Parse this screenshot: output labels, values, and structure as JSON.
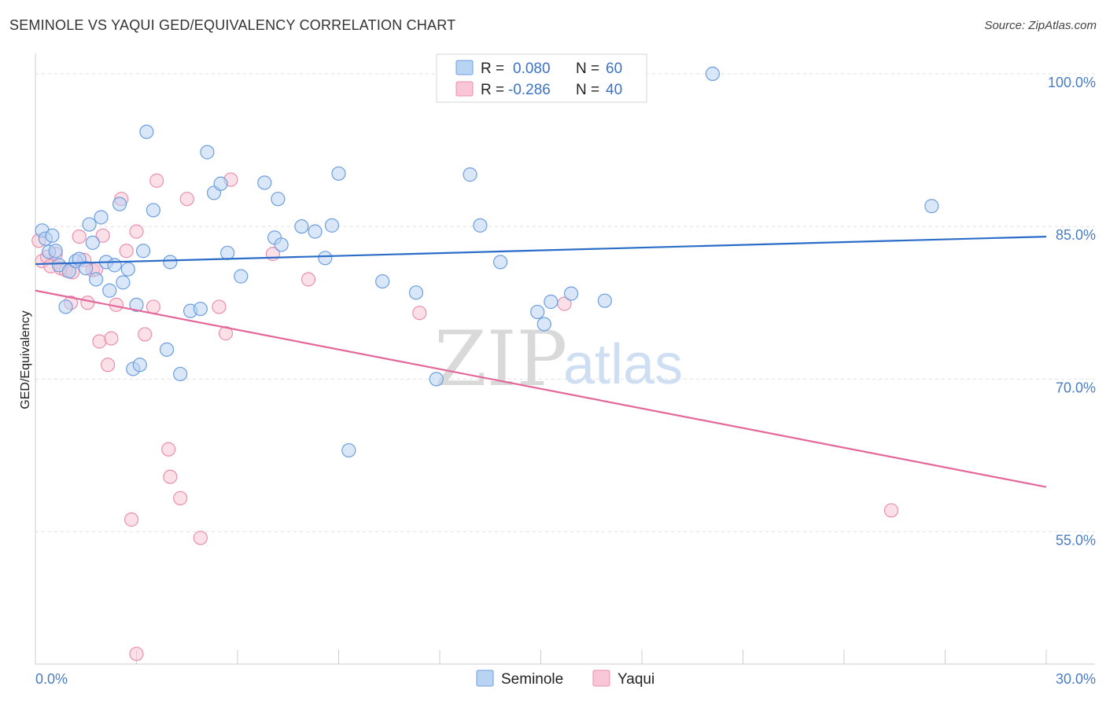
{
  "title": "SEMINOLE VS YAQUI GED/EQUIVALENCY CORRELATION CHART",
  "source": "Source: ZipAtlas.com",
  "watermark": {
    "zip": "ZIP",
    "atlas": "atlas"
  },
  "colors": {
    "seminole_fill": "#b9d3f3",
    "seminole_stroke": "#6c9fe0",
    "seminole_line": "#2a6cc8",
    "yaqui_fill": "#f8c6d6",
    "yaqui_stroke": "#eb8fae",
    "yaqui_line": "#e4679a",
    "axis_label": "#4a7cc2",
    "grid": "#e0e0e0"
  },
  "legend": {
    "rows": [
      {
        "r_label": "R =",
        "r_value": "0.080",
        "n_label": "N =",
        "n_value": "60"
      },
      {
        "r_label": "R =",
        "r_value": "-0.286",
        "n_label": "N =",
        "n_value": "40"
      }
    ]
  },
  "chart_data": {
    "type": "scatter",
    "title": "SEMINOLE VS YAQUI GED/EQUIVALENCY CORRELATION CHART",
    "xlabel": "",
    "ylabel": "GED/Equivalency",
    "xlim": [
      0,
      30
    ],
    "ylim": [
      42,
      102
    ],
    "x_tick_labels": [
      "0.0%",
      "30.0%"
    ],
    "y_ticks": [
      55,
      70,
      85,
      100
    ],
    "y_tick_labels": [
      "55.0%",
      "70.0%",
      "85.0%",
      "100.0%"
    ],
    "grid": true,
    "legend_position": "bottom-center",
    "series": [
      {
        "name": "Seminole",
        "r": 0.08,
        "n": 60,
        "trend": {
          "x": [
            0,
            30
          ],
          "y": [
            81.3,
            84.0
          ]
        },
        "points": [
          {
            "x": 0.2,
            "y": 84.6
          },
          {
            "x": 0.3,
            "y": 83.8
          },
          {
            "x": 0.4,
            "y": 82.5
          },
          {
            "x": 0.5,
            "y": 84.1
          },
          {
            "x": 0.6,
            "y": 82.6
          },
          {
            "x": 0.7,
            "y": 81.2
          },
          {
            "x": 0.9,
            "y": 77.1
          },
          {
            "x": 1.0,
            "y": 80.6
          },
          {
            "x": 1.2,
            "y": 81.6
          },
          {
            "x": 1.3,
            "y": 81.8
          },
          {
            "x": 1.5,
            "y": 80.9
          },
          {
            "x": 1.6,
            "y": 85.2
          },
          {
            "x": 1.7,
            "y": 83.4
          },
          {
            "x": 1.8,
            "y": 79.8
          },
          {
            "x": 1.95,
            "y": 85.9
          },
          {
            "x": 2.1,
            "y": 81.5
          },
          {
            "x": 2.2,
            "y": 78.7
          },
          {
            "x": 2.35,
            "y": 81.2
          },
          {
            "x": 2.5,
            "y": 87.2
          },
          {
            "x": 2.6,
            "y": 79.5
          },
          {
            "x": 2.75,
            "y": 80.8
          },
          {
            "x": 2.9,
            "y": 71.0
          },
          {
            "x": 3.0,
            "y": 77.3
          },
          {
            "x": 3.1,
            "y": 71.4
          },
          {
            "x": 3.3,
            "y": 94.3
          },
          {
            "x": 3.5,
            "y": 86.6
          },
          {
            "x": 3.2,
            "y": 82.6
          },
          {
            "x": 3.9,
            "y": 72.9
          },
          {
            "x": 4.0,
            "y": 81.5
          },
          {
            "x": 4.3,
            "y": 70.5
          },
          {
            "x": 4.6,
            "y": 76.7
          },
          {
            "x": 4.9,
            "y": 76.9
          },
          {
            "x": 5.1,
            "y": 92.3
          },
          {
            "x": 5.3,
            "y": 88.3
          },
          {
            "x": 5.5,
            "y": 89.2
          },
          {
            "x": 5.7,
            "y": 82.4
          },
          {
            "x": 6.1,
            "y": 80.1
          },
          {
            "x": 6.8,
            "y": 89.3
          },
          {
            "x": 7.1,
            "y": 83.9
          },
          {
            "x": 7.2,
            "y": 87.7
          },
          {
            "x": 7.3,
            "y": 83.2
          },
          {
            "x": 7.9,
            "y": 85.0
          },
          {
            "x": 8.3,
            "y": 84.5
          },
          {
            "x": 8.6,
            "y": 81.9
          },
          {
            "x": 8.8,
            "y": 85.1
          },
          {
            "x": 9.0,
            "y": 90.2
          },
          {
            "x": 9.3,
            "y": 63.0
          },
          {
            "x": 10.3,
            "y": 79.6
          },
          {
            "x": 11.3,
            "y": 78.5
          },
          {
            "x": 11.9,
            "y": 70.0
          },
          {
            "x": 12.9,
            "y": 90.1
          },
          {
            "x": 13.2,
            "y": 85.1
          },
          {
            "x": 13.8,
            "y": 81.5
          },
          {
            "x": 14.9,
            "y": 76.6
          },
          {
            "x": 15.1,
            "y": 75.4
          },
          {
            "x": 15.3,
            "y": 77.6
          },
          {
            "x": 15.9,
            "y": 78.4
          },
          {
            "x": 16.9,
            "y": 77.7
          },
          {
            "x": 20.1,
            "y": 100.0
          },
          {
            "x": 26.6,
            "y": 87.0
          }
        ]
      },
      {
        "name": "Yaqui",
        "r": -0.286,
        "n": 40,
        "trend": {
          "x": [
            0,
            30
          ],
          "y": [
            78.7,
            59.4
          ]
        },
        "points": [
          {
            "x": 0.1,
            "y": 83.6
          },
          {
            "x": 0.2,
            "y": 81.6
          },
          {
            "x": 0.35,
            "y": 82.0
          },
          {
            "x": 0.45,
            "y": 81.1
          },
          {
            "x": 0.6,
            "y": 82.3
          },
          {
            "x": 0.75,
            "y": 80.9
          },
          {
            "x": 0.9,
            "y": 80.7
          },
          {
            "x": 1.05,
            "y": 77.5
          },
          {
            "x": 1.1,
            "y": 80.5
          },
          {
            "x": 1.3,
            "y": 84.0
          },
          {
            "x": 1.45,
            "y": 81.7
          },
          {
            "x": 1.55,
            "y": 77.5
          },
          {
            "x": 1.7,
            "y": 80.7
          },
          {
            "x": 1.8,
            "y": 80.8
          },
          {
            "x": 1.9,
            "y": 73.7
          },
          {
            "x": 2.0,
            "y": 84.1
          },
          {
            "x": 2.15,
            "y": 71.4
          },
          {
            "x": 2.25,
            "y": 74.0
          },
          {
            "x": 2.4,
            "y": 77.3
          },
          {
            "x": 2.55,
            "y": 87.7
          },
          {
            "x": 2.7,
            "y": 82.6
          },
          {
            "x": 2.85,
            "y": 56.2
          },
          {
            "x": 3.0,
            "y": 84.5
          },
          {
            "x": 3.0,
            "y": 43.0
          },
          {
            "x": 3.25,
            "y": 74.4
          },
          {
            "x": 3.5,
            "y": 77.1
          },
          {
            "x": 3.6,
            "y": 89.5
          },
          {
            "x": 3.95,
            "y": 63.1
          },
          {
            "x": 4.0,
            "y": 60.4
          },
          {
            "x": 4.3,
            "y": 58.3
          },
          {
            "x": 4.5,
            "y": 87.7
          },
          {
            "x": 4.9,
            "y": 54.4
          },
          {
            "x": 5.45,
            "y": 77.1
          },
          {
            "x": 5.65,
            "y": 74.5
          },
          {
            "x": 5.8,
            "y": 89.6
          },
          {
            "x": 7.05,
            "y": 82.3
          },
          {
            "x": 8.1,
            "y": 79.8
          },
          {
            "x": 11.4,
            "y": 76.5
          },
          {
            "x": 15.7,
            "y": 77.4
          },
          {
            "x": 25.4,
            "y": 57.1
          }
        ]
      }
    ]
  }
}
